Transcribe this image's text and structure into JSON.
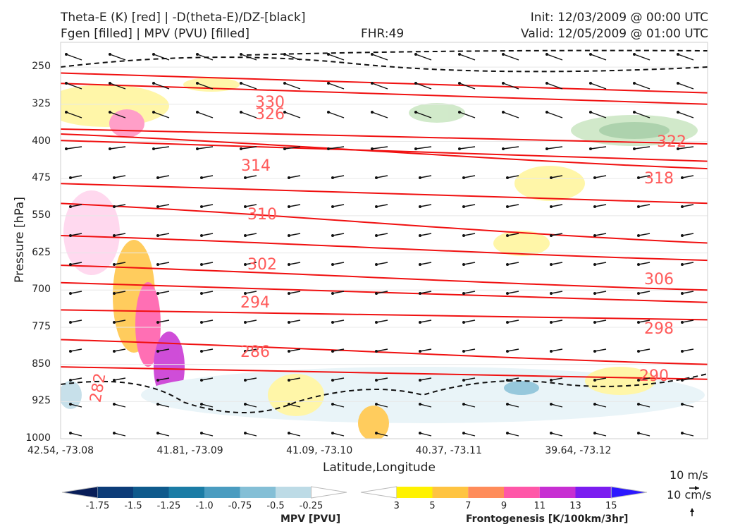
{
  "header": {
    "title_line1": "Theta-E (K) [red] | -D(theta-E)/DZ-[black]",
    "title_line2": "Fgen [filled] | MPV (PVU) [filled]",
    "fhr": "FHR:49",
    "init": "Init: 12/03/2009 @ 00:00 UTC",
    "valid": "Valid: 12/05/2009 @ 01:00 UTC"
  },
  "chart_data": {
    "type": "contour",
    "xlabel": "Latitude,Longitude",
    "ylabel": "Pressure [hPa]",
    "y_ticks": [
      "250",
      "325",
      "400",
      "475",
      "550",
      "625",
      "700",
      "775",
      "850",
      "925",
      "1000"
    ],
    "y_values": [
      250,
      325,
      400,
      475,
      550,
      625,
      700,
      775,
      850,
      925,
      1000
    ],
    "ylim": [
      1000,
      200
    ],
    "x_ticks": [
      "42.54, -73.08",
      "41.81, -73.09",
      "41.09, -73.10",
      "40.37, -73.11",
      "39.64, -73.12"
    ],
    "theta_e_lines": [
      {
        "label": "330",
        "left_p": 262,
        "right_p": 302
      },
      {
        "label": "326",
        "left_p": 283,
        "right_p": 325
      },
      {
        "label": "322",
        "left_p": 375,
        "right_p": 405
      },
      {
        "label": "314",
        "left_p": 398,
        "right_p": 440
      },
      {
        "label": "318",
        "left_p": 385,
        "right_p": 455
      },
      {
        "label": "310",
        "left_p": 485,
        "right_p": 525
      },
      {
        "label": "306",
        "left_p": 525,
        "right_p": 605
      },
      {
        "label": "302",
        "left_p": 590,
        "right_p": 640
      },
      {
        "label": "298",
        "left_p": 650,
        "right_p": 700
      },
      {
        "label": "294",
        "left_p": 685,
        "right_p": 725
      },
      {
        "label": "290",
        "left_p": 740,
        "right_p": 760
      },
      {
        "label": "286",
        "left_p": 800,
        "right_p": 850
      },
      {
        "label": "282",
        "left_p": 855,
        "right_p": 880
      }
    ],
    "legend": "none",
    "grid": true
  },
  "colorbar_mpv": {
    "label": "MPV [PVU]",
    "ticks": [
      "-1.75",
      "-1.5",
      "-1.25",
      "-1.0",
      "-0.75",
      "-0.5",
      "-0.25"
    ],
    "colors": [
      "#081d58",
      "#0c3c78",
      "#0f5a8c",
      "#1b7ca5",
      "#4a9cc0",
      "#84bfd6",
      "#bddbe6",
      "#ffffff"
    ]
  },
  "colorbar_fgen": {
    "label": "Frontogenesis [K/100km/3hr]",
    "ticks": [
      "3",
      "5",
      "7",
      "9",
      "11",
      "13",
      "15"
    ],
    "colors": [
      "#ffffff",
      "#fff200",
      "#ffc441",
      "#ff8c5a",
      "#ff57a8",
      "#c72fd2",
      "#7b1df0",
      "#2b17ff"
    ]
  },
  "vector_key": {
    "horizontal": "10 m/s",
    "vertical": "10 cm/s"
  }
}
